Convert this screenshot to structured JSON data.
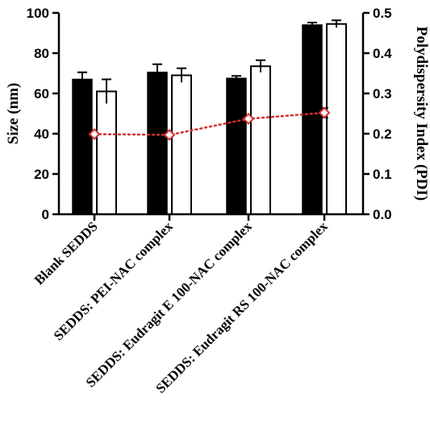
{
  "chart_data": {
    "type": "bar",
    "categories": [
      "Blank SEDDS",
      "SEDDS: PEI-NAC complex",
      "SEDDS: Eudragit E 100-NAC complex",
      "SEDDS: Eudragit RS 100-NAC complex"
    ],
    "ylabel_left": "Size (nm)",
    "ylabel_right": "Polydispersity Index (PDI)",
    "ylim_left": [
      0,
      100
    ],
    "ylim_right": [
      0,
      0.5
    ],
    "yticks_left": [
      "0",
      "20",
      "40",
      "60",
      "80",
      "100"
    ],
    "yticks_right": [
      "0.0",
      "0.1",
      "0.2",
      "0.3",
      "0.4",
      "0.5"
    ],
    "series": [
      {
        "axis": "left",
        "style": "filled-bar",
        "color": "#000000",
        "values": [
          67,
          70.5,
          67.5,
          94
        ],
        "errors": [
          3.5,
          4,
          1.2,
          1.2
        ]
      },
      {
        "axis": "left",
        "style": "open-bar",
        "color": "#ffffff",
        "values": [
          61,
          69,
          73.5,
          94.5
        ],
        "errors": [
          6,
          3.5,
          3,
          1.8
        ]
      },
      {
        "axis": "right",
        "style": "dotted-line-diamond",
        "color": "#d32f2f",
        "values": [
          0.199,
          0.197,
          0.237,
          0.252
        ],
        "errors": [
          0,
          0,
          0,
          0.012
        ]
      }
    ]
  }
}
